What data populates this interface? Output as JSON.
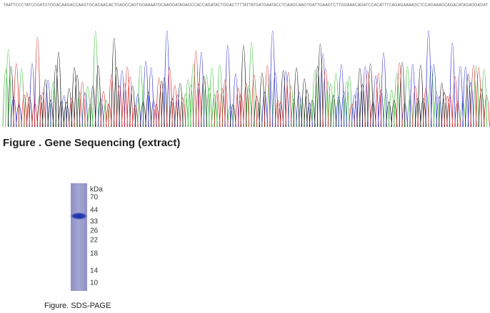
{
  "sequence": "TAATTCCCTATCCGATGTGGACAAGACCAAGTGCACAACACTGAGCCAGTGGAAAATGCAAGGATAGAGCCACCAGATACTGGACTTTTATTATGATGAATACCTCAAGCAAGTGATTGAAGTCTTGGAAACAGATCCACATTTCAGAGAAAAGCTCCAGAAAGCAGACATAGAGGAGAT",
  "figure1": {
    "caption": "Figure . Gene Sequencing (extract)"
  },
  "figure2": {
    "unit": "kDa",
    "markers": [
      70,
      44,
      33,
      26,
      22,
      18,
      14,
      10
    ],
    "caption": "Figure. SDS-PAGE"
  }
}
